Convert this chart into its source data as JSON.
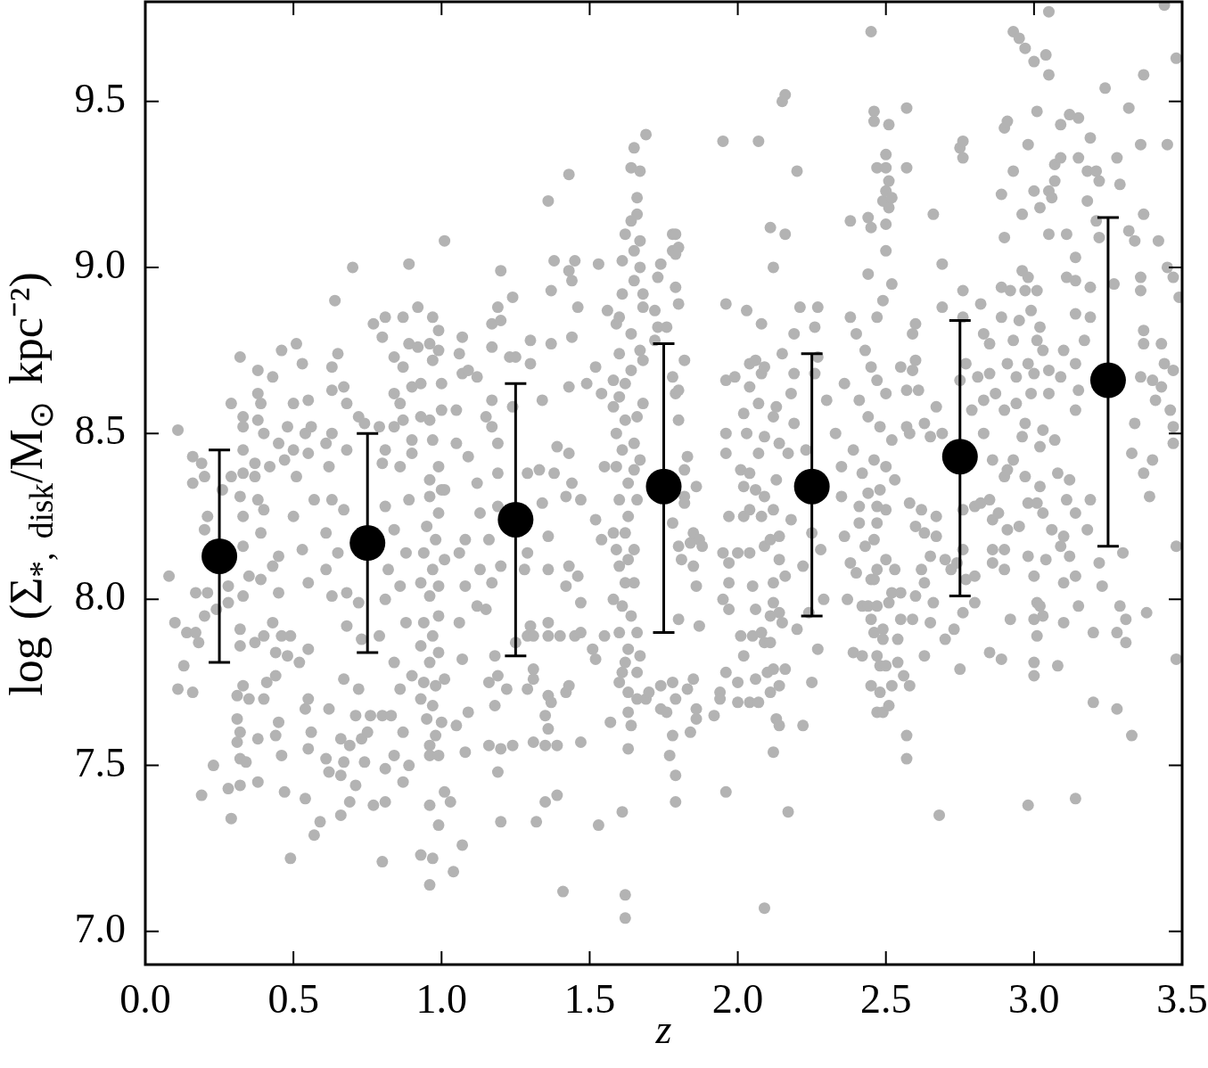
{
  "chart_data": {
    "type": "scatter",
    "xlabel": "z",
    "ylabel": "log (Σ$_{*, disk}$/M$_{⊙}$ kpc⁻²)",
    "xlim": [
      0,
      3.5
    ],
    "ylim": [
      6.9,
      9.8
    ],
    "xticks": [
      {
        "value": 0,
        "label": "0.0"
      },
      0.5,
      {
        "value": 1,
        "label": "1.0"
      },
      1.5,
      {
        "value": 2,
        "label": "2.0"
      },
      2.5,
      {
        "value": 3,
        "label": "3.0"
      },
      3.5
    ],
    "yticks": [
      {
        "value": 7,
        "label": "7.0"
      },
      7.5,
      {
        "value": 8,
        "label": "8.0"
      },
      8.5,
      {
        "value": 9,
        "label": "9.0"
      },
      9.5
    ],
    "marker": "circle",
    "series": [
      {
        "color": "#b3b3b3",
        "x": [
          0.08,
          0.11,
          0.1,
          0.13,
          0.11,
          0.16,
          0.14,
          0.16,
          0.16,
          0.17,
          0.17,
          0.18,
          0.19,
          0.19,
          0.2,
          0.21,
          0.2,
          0.21,
          0.2,
          0.23,
          0.24,
          0.26,
          0.28,
          0.28,
          0.29,
          0.28,
          0.29,
          0.29,
          0.32,
          0.32,
          0.32,
          0.33,
          0.33,
          0.33,
          0.33,
          0.33,
          0.33,
          0.33,
          0.32,
          0.32,
          0.33,
          0.31,
          0.31,
          0.32,
          0.31,
          0.32,
          0.34,
          0.35,
          0.35,
          0.37,
          0.37,
          0.37,
          0.38,
          0.38,
          0.38,
          0.38,
          0.38,
          0.38,
          0.39,
          0.39,
          0.39,
          0.4,
          0.4,
          0.4,
          0.4,
          0.41,
          0.42,
          0.43,
          0.43,
          0.43,
          0.44,
          0.44,
          0.44,
          0.45,
          0.45,
          0.45,
          0.45,
          0.46,
          0.46,
          0.46,
          0.47,
          0.47,
          0.48,
          0.48,
          0.49,
          0.49,
          0.5,
          0.5,
          0.5,
          0.51,
          0.51,
          0.52,
          0.53,
          0.53,
          0.54,
          0.54,
          0.54,
          0.55,
          0.55,
          0.55,
          0.55,
          0.55,
          0.55,
          0.56,
          0.56,
          0.57,
          0.57,
          0.59,
          0.61,
          0.61,
          0.61,
          0.61,
          0.62,
          0.62,
          0.62,
          0.63,
          0.63,
          0.63,
          0.63,
          0.63,
          0.64,
          0.65,
          0.65,
          0.66,
          0.66,
          0.66,
          0.67,
          0.67,
          0.67,
          0.67,
          0.68,
          0.68,
          0.68,
          0.68,
          0.69,
          0.69,
          0.7,
          0.71,
          0.71,
          0.72,
          0.72,
          0.72,
          0.73,
          0.73,
          0.74,
          0.74,
          0.75,
          0.76,
          0.77,
          0.77,
          0.79,
          0.79,
          0.8,
          0.8,
          0.8,
          0.8,
          0.81,
          0.81,
          0.81,
          0.81,
          0.81,
          0.81,
          0.82,
          0.83,
          0.84,
          0.84,
          0.84,
          0.84,
          0.84,
          0.84,
          0.86,
          0.86,
          0.86,
          0.86,
          0.87,
          0.87,
          0.87,
          0.87,
          0.87,
          0.88,
          0.88,
          0.89,
          0.89,
          0.89,
          0.89,
          0.9,
          0.9,
          0.9,
          0.9,
          0.92,
          0.92,
          0.93,
          0.93,
          0.93,
          0.93,
          0.93,
          0.93,
          0.94,
          0.94,
          0.94,
          0.95,
          0.95,
          0.96,
          0.96,
          0.96,
          0.96,
          0.96,
          0.96,
          0.96,
          0.96,
          0.96,
          0.96,
          0.97,
          0.97,
          0.97,
          0.97,
          0.97,
          0.97,
          0.97,
          0.98,
          0.98,
          0.98,
          0.99,
          0.99,
          0.99,
          0.99,
          0.99,
          0.99,
          0.99,
          0.99,
          0.99,
          1.0,
          1.0,
          1.0,
          1.0,
          1.01,
          1.01,
          1.01,
          1.01,
          1.01,
          1.03,
          1.04,
          1.05,
          1.05,
          1.05,
          1.06,
          1.06,
          1.06,
          1.07,
          1.07,
          1.07,
          1.07,
          1.08,
          1.08,
          1.08,
          1.09,
          1.09,
          1.09,
          1.12,
          1.12,
          1.12,
          1.13,
          1.13,
          1.15,
          1.15,
          1.16,
          1.16,
          1.16,
          1.17,
          1.17,
          1.17,
          1.17,
          1.17,
          1.18,
          1.18,
          1.19,
          1.19,
          1.19,
          1.19,
          1.19,
          1.19,
          1.2,
          1.2,
          1.2,
          1.2,
          1.2,
          1.22,
          1.23,
          1.24,
          1.24,
          1.24,
          1.25,
          1.25,
          1.28,
          1.29,
          1.29,
          1.29,
          1.29,
          1.3,
          1.3,
          1.3,
          1.31,
          1.31,
          1.31,
          1.31,
          1.32,
          1.33,
          1.34,
          1.34,
          1.35,
          1.35,
          1.35,
          1.36,
          1.36,
          1.36,
          1.36,
          1.36,
          1.36,
          1.36,
          1.37,
          1.37,
          1.37,
          1.38,
          1.38,
          1.39,
          1.39,
          1.39,
          1.4,
          1.41,
          1.42,
          1.42,
          1.42,
          1.43,
          1.43,
          1.43,
          1.43,
          1.43,
          1.43,
          1.44,
          1.44,
          1.44,
          1.45,
          1.45,
          1.46,
          1.46,
          1.47,
          1.47,
          1.47,
          1.47,
          1.49,
          1.51,
          1.52,
          1.52,
          1.52,
          1.53,
          1.53,
          1.54,
          1.54,
          1.55,
          1.55,
          1.56,
          1.57,
          1.58,
          1.58,
          1.58,
          1.59,
          1.59,
          1.6,
          1.6,
          1.6,
          1.6,
          1.6,
          1.6,
          1.61,
          1.61,
          1.61,
          1.61,
          1.62,
          1.62,
          1.62,
          1.62,
          1.62,
          1.62,
          1.63,
          1.63,
          1.63,
          1.63,
          1.63,
          1.64,
          1.64,
          1.64,
          1.64,
          1.64,
          1.65,
          1.65,
          1.65,
          1.65,
          1.65,
          1.65,
          1.66,
          1.66,
          1.66,
          1.66,
          1.67,
          1.67,
          1.67,
          1.67,
          1.67,
          1.68,
          1.68,
          1.68,
          1.68,
          1.69,
          1.69,
          1.7,
          1.72,
          1.72,
          1.73,
          1.73,
          1.74,
          1.74,
          1.74,
          1.59,
          1.61,
          1.63,
          1.66,
          1.62,
          1.64,
          1.6,
          1.66,
          1.62,
          1.59,
          1.65,
          1.61,
          1.66,
          1.63,
          1.67,
          1.58,
          1.76,
          1.76,
          1.77,
          1.78,
          1.78,
          1.78,
          1.78,
          1.78,
          1.78,
          1.79,
          1.79,
          1.79,
          1.79,
          1.79,
          1.79,
          1.79,
          1.8,
          1.8,
          1.8,
          1.8,
          1.8,
          1.8,
          1.81,
          1.82,
          1.82,
          1.82,
          1.82,
          1.83,
          1.83,
          1.84,
          1.84,
          1.85,
          1.85,
          1.85,
          1.86,
          1.86,
          1.86,
          1.86,
          1.87,
          1.87,
          1.88,
          1.92,
          1.94,
          1.94,
          1.95,
          1.95,
          1.95,
          1.96,
          1.96,
          1.96,
          1.96,
          1.96,
          1.96,
          1.97,
          1.97,
          1.97,
          1.97,
          1.99,
          2.0,
          2.0,
          2.0,
          2.01,
          2.01,
          2.02,
          2.02,
          2.02,
          2.02,
          2.03,
          2.03,
          2.04,
          2.04,
          2.04,
          2.04,
          2.04,
          2.04,
          2.05,
          2.05,
          2.06,
          2.06,
          2.06,
          2.06,
          2.07,
          2.07,
          2.07,
          2.07,
          2.08,
          2.08,
          2.08,
          2.08,
          2.09,
          2.09,
          2.09,
          2.09,
          2.09,
          2.09,
          2.1,
          2.11,
          2.11,
          2.11,
          2.11,
          2.11,
          2.12,
          2.12,
          2.12,
          2.12,
          2.12,
          2.12,
          2.12,
          2.13,
          2.13,
          2.13,
          2.14,
          2.14,
          2.14,
          2.14,
          2.14,
          2.14,
          2.15,
          2.15,
          2.15,
          2.16,
          2.16,
          2.16,
          2.16,
          2.17,
          2.17,
          2.18,
          2.18,
          2.19,
          2.19,
          2.19,
          2.2,
          2.2,
          2.21,
          2.24,
          2.25,
          2.26,
          2.26,
          2.27,
          2.27,
          2.22,
          2.25,
          2.23,
          2.29,
          2.3,
          2.27,
          2.22,
          2.28,
          2.35,
          2.36,
          2.37,
          2.38,
          2.38,
          2.39,
          2.4,
          2.41,
          2.41,
          2.42,
          2.42,
          2.43,
          2.44,
          2.44,
          2.44,
          2.45,
          2.45,
          2.45,
          2.45,
          2.46,
          2.46,
          2.46,
          2.46,
          2.46,
          2.45,
          2.47,
          2.47,
          2.47,
          2.47,
          2.47,
          2.47,
          2.47,
          2.48,
          2.48,
          2.48,
          2.49,
          2.49,
          2.49,
          2.49,
          2.5,
          2.5,
          2.5,
          2.5,
          2.5,
          2.5,
          2.5,
          2.51,
          2.51,
          2.51,
          2.51,
          2.51,
          2.52,
          2.52,
          2.52,
          2.53,
          2.54,
          2.54,
          2.55,
          2.55,
          2.56,
          2.57,
          2.57,
          2.57,
          2.57,
          2.57,
          2.57,
          2.58,
          2.58,
          2.58,
          2.38,
          2.4,
          2.43,
          2.45,
          2.47,
          2.5,
          2.41,
          2.44,
          2.48,
          2.52,
          2.39,
          2.46,
          2.5,
          2.42,
          2.53,
          2.49,
          2.52,
          2.36,
          2.33,
          2.55,
          2.35,
          2.47,
          2.44,
          2.5,
          2.59,
          2.59,
          2.59,
          2.6,
          2.6,
          2.6,
          2.6,
          2.61,
          2.62,
          2.62,
          2.63,
          2.63,
          2.63,
          2.63,
          2.65,
          2.65,
          2.65,
          2.66,
          2.66,
          2.67,
          2.67,
          2.67,
          2.68,
          2.69,
          2.69,
          2.69,
          2.7,
          2.7,
          2.72,
          2.73,
          2.74,
          2.75,
          2.75,
          2.75,
          2.76,
          2.76,
          2.76,
          2.76,
          2.76,
          2.76,
          2.76,
          2.77,
          2.77,
          2.79,
          2.8,
          2.8,
          2.8,
          2.81,
          2.82,
          2.82,
          2.83,
          2.83,
          2.83,
          2.85,
          2.85,
          2.85,
          2.85,
          2.86,
          2.86,
          2.86,
          2.86,
          2.87,
          2.88,
          2.89,
          2.89,
          2.89,
          2.89,
          2.9,
          2.9,
          2.9,
          2.9,
          2.9,
          2.9,
          2.91,
          2.91,
          2.91,
          2.91,
          2.92,
          2.92,
          2.93,
          2.93,
          2.93,
          2.93,
          2.94,
          2.94,
          2.95,
          2.95,
          2.95,
          2.96,
          2.96,
          2.96,
          2.97,
          2.97,
          2.97,
          2.97,
          2.98,
          2.98,
          2.98,
          2.98,
          2.98,
          2.98,
          2.99,
          2.99,
          3.0,
          3.0,
          3.0,
          3.0,
          3.0,
          3.0,
          3.0,
          3.01,
          3.01,
          3.01,
          3.01,
          3.01,
          3.01,
          3.02,
          3.02,
          3.02,
          3.02,
          3.02,
          3.03,
          3.03,
          3.03,
          3.03,
          3.04,
          3.04,
          3.05,
          3.05,
          3.05,
          3.05,
          3.05,
          3.05,
          3.06,
          3.06,
          3.07,
          3.07,
          3.07,
          3.08,
          3.08,
          3.09,
          3.09,
          3.09,
          3.09,
          3.1,
          3.1,
          3.1,
          3.1,
          3.11,
          3.11,
          3.11,
          3.12,
          3.12,
          3.12,
          3.14,
          3.14,
          3.14,
          3.14,
          3.14,
          3.14,
          3.14,
          3.14,
          3.15,
          3.15,
          3.15,
          3.15,
          3.17,
          3.18,
          3.18,
          3.18,
          3.19,
          3.19,
          3.19,
          3.19,
          3.2,
          3.2,
          3.21,
          3.21,
          3.22,
          3.22,
          3.22,
          3.23,
          3.24,
          3.27,
          3.28,
          3.28,
          3.28,
          3.29,
          3.29,
          3.3,
          3.31,
          3.31,
          3.32,
          3.32,
          3.33,
          3.33,
          3.34,
          3.34,
          3.36,
          3.36,
          3.36,
          3.36,
          3.37,
          3.37,
          3.37,
          3.37,
          3.37,
          3.38,
          3.39,
          3.4,
          3.4,
          3.41,
          3.42,
          3.43,
          3.43,
          3.44,
          3.44,
          3.45,
          3.45,
          3.46,
          3.47,
          3.47,
          3.47,
          3.47,
          3.48,
          3.48,
          3.48,
          3.49
        ],
        "values": [
          8.07,
          8.51,
          7.93,
          7.8,
          7.73,
          7.72,
          7.9,
          8.43,
          8.35,
          8.02,
          7.9,
          7.87,
          7.41,
          8.41,
          8.37,
          8.25,
          8.21,
          8.02,
          7.95,
          7.5,
          7.97,
          8.33,
          7.99,
          8.04,
          7.34,
          7.43,
          8.59,
          8.37,
          8.73,
          8.31,
          7.44,
          8.38,
          8.45,
          8.55,
          8.52,
          8.25,
          8.16,
          8.01,
          7.91,
          7.86,
          7.74,
          7.71,
          7.64,
          7.6,
          7.57,
          7.52,
          7.51,
          8.07,
          7.7,
          8.37,
          8.41,
          7.87,
          8.69,
          8.3,
          8.54,
          8.62,
          7.45,
          7.58,
          8.59,
          8.2,
          8.06,
          8.5,
          8.27,
          7.89,
          7.7,
          7.75,
          8.4,
          8.67,
          8.1,
          7.93,
          7.84,
          7.77,
          7.59,
          8.13,
          8.02,
          8.47,
          7.63,
          8.75,
          7.89,
          7.53,
          8.42,
          7.42,
          8.52,
          7.83,
          7.22,
          7.89,
          8.59,
          8.45,
          8.25,
          8.77,
          8.37,
          7.81,
          8.71,
          8.15,
          8.5,
          7.4,
          7.67,
          8.6,
          8.44,
          8.05,
          7.85,
          7.7,
          7.55,
          8.52,
          7.6,
          8.3,
          7.29,
          7.33,
          8.47,
          8.2,
          8.09,
          7.52,
          8.4,
          7.67,
          7.48,
          8.7,
          8.63,
          8.5,
          8.3,
          8.01,
          8.9,
          8.74,
          8.14,
          7.35,
          7.58,
          7.47,
          8.64,
          8.27,
          7.76,
          7.51,
          8.45,
          8.59,
          8.02,
          7.92,
          7.39,
          7.56,
          9.0,
          7.65,
          7.44,
          8.55,
          7.99,
          7.73,
          7.88,
          7.58,
          8.53,
          7.51,
          7.6,
          7.65,
          8.83,
          7.38,
          8.52,
          7.89,
          8.79,
          8.41,
          7.65,
          7.21,
          8.85,
          8.45,
          8.28,
          8.0,
          7.39,
          7.49,
          8.09,
          7.65,
          8.52,
          8.62,
          8.73,
          8.21,
          7.81,
          7.53,
          8.4,
          8.59,
          8.04,
          7.73,
          8.85,
          8.54,
          8.7,
          7.6,
          7.45,
          8.14,
          7.93,
          9.01,
          8.77,
          8.3,
          7.5,
          8.64,
          8.44,
          8.48,
          7.77,
          8.88,
          8.76,
          8.55,
          8.65,
          8.05,
          7.86,
          7.7,
          7.23,
          8.14,
          7.93,
          7.75,
          8.22,
          7.64,
          8.77,
          8.54,
          8.36,
          8.31,
          8.01,
          7.81,
          7.56,
          7.53,
          7.38,
          7.14,
          8.85,
          8.72,
          8.48,
          8.09,
          7.89,
          7.68,
          7.22,
          8.18,
          7.74,
          7.59,
          8.81,
          8.75,
          8.4,
          8.26,
          8.04,
          7.95,
          7.84,
          7.53,
          7.32,
          8.65,
          8.57,
          8.33,
          7.63,
          9.08,
          8.33,
          8.12,
          7.76,
          7.42,
          7.39,
          7.18,
          8.57,
          8.47,
          7.62,
          8.74,
          8.14,
          7.93,
          8.79,
          8.68,
          7.82,
          7.26,
          8.18,
          8.04,
          7.54,
          8.69,
          8.43,
          7.66,
          8.67,
          8.35,
          7.98,
          8.26,
          8.09,
          8.55,
          7.97,
          8.18,
          7.75,
          7.56,
          8.83,
          8.76,
          8.6,
          8.52,
          8.05,
          7.83,
          7.68,
          8.88,
          8.47,
          8.38,
          8.28,
          7.77,
          7.48,
          8.99,
          8.84,
          8.1,
          7.55,
          7.33,
          7.73,
          8.73,
          8.91,
          8.58,
          7.56,
          8.73,
          7.87,
          8.09,
          8.38,
          8.14,
          7.89,
          7.73,
          8.78,
          8.71,
          7.92,
          7.89,
          7.79,
          7.76,
          7.57,
          7.33,
          8.39,
          8.6,
          8.29,
          7.65,
          7.56,
          7.39,
          9.2,
          8.19,
          8.09,
          7.93,
          7.89,
          7.71,
          7.61,
          8.93,
          8.77,
          7.69,
          9.02,
          8.38,
          8.46,
          7.56,
          7.41,
          7.89,
          7.12,
          8.31,
          8.04,
          7.72,
          9.28,
          8.99,
          8.64,
          8.44,
          8.1,
          7.74,
          8.96,
          8.79,
          8.35,
          9.02,
          7.89,
          8.88,
          8.07,
          8.3,
          7.99,
          7.9,
          7.57,
          8.65,
          7.85,
          8.7,
          8.24,
          7.82,
          9.01,
          7.32,
          8.62,
          8.18,
          8.4,
          7.89,
          8.87,
          7.63,
          8.66,
          8.2,
          8.0,
          8.83,
          8.5,
          8.74,
          8.61,
          8.3,
          8.1,
          7.9,
          7.75,
          9.02,
          8.92,
          7.78,
          7.36,
          9.1,
          8.54,
          8.05,
          7.81,
          7.11,
          7.04,
          8.25,
          7.85,
          7.72,
          7.66,
          7.55,
          9.3,
          9.14,
          8.69,
          7.95,
          7.62,
          9.36,
          9.05,
          8.96,
          8.47,
          8.39,
          8.15,
          9.21,
          9.16,
          7.78,
          7.7,
          9.29,
          9.08,
          9.0,
          8.75,
          7.83,
          8.92,
          8.88,
          8.72,
          8.59,
          9.4,
          7.7,
          7.72,
          8.87,
          8.78,
          8.97,
          8.82,
          9.01,
          7.67,
          7.74,
          8.4,
          8.45,
          8.35,
          8.55,
          8.65,
          8.8,
          8.85,
          8.3,
          8.2,
          8.15,
          8.05,
          7.98,
          7.9,
          8.12,
          8.42,
          8.58,
          8.82,
          7.66,
          7.53,
          9.1,
          9.05,
          8.67,
          8.23,
          7.75,
          7.59,
          9.1,
          9.04,
          8.94,
          8.62,
          7.7,
          7.47,
          7.39,
          9.06,
          8.89,
          8.63,
          8.54,
          8.16,
          7.94,
          8.12,
          8.72,
          8.39,
          8.31,
          8.29,
          8.43,
          7.73,
          8.17,
          7.6,
          8.2,
          8.1,
          7.76,
          8.34,
          8.04,
          7.67,
          7.64,
          8.18,
          7.92,
          8.16,
          7.65,
          7.72,
          7.7,
          9.38,
          8.14,
          8.0,
          8.89,
          8.66,
          8.5,
          8.44,
          7.78,
          7.42,
          8.25,
          8.11,
          8.05,
          7.97,
          8.67,
          8.14,
          7.75,
          7.69,
          8.39,
          7.89,
          8.56,
          8.34,
          8.25,
          7.83,
          8.87,
          8.5,
          8.71,
          8.64,
          8.38,
          8.27,
          8.14,
          7.69,
          8.04,
          7.89,
          8.72,
          8.33,
          7.97,
          7.76,
          9.38,
          8.59,
          8.44,
          7.69,
          8.83,
          8.68,
          8.25,
          7.9,
          8.7,
          8.49,
          8.31,
          8.16,
          7.87,
          7.07,
          7.78,
          9.12,
          8.18,
          7.95,
          7.87,
          7.72,
          9.0,
          8.55,
          8.27,
          8.05,
          7.99,
          7.79,
          7.54,
          8.58,
          8.36,
          7.64,
          8.47,
          8.19,
          8.12,
          7.96,
          7.74,
          7.62,
          9.5,
          8.74,
          7.93,
          9.52,
          9.1,
          8.07,
          7.79,
          8.44,
          7.36,
          8.62,
          8.24,
          8.8,
          8.68,
          8.53,
          9.29,
          7.91,
          8.88,
          7.96,
          7.75,
          8.82,
          8.68,
          8.88,
          8.73,
          8.1,
          8.2,
          8.45,
          8.0,
          8.6,
          7.85,
          7.62,
          8.15,
          8.31,
          8.19,
          8.0,
          8.11,
          9.14,
          7.84,
          8.08,
          8.23,
          8.28,
          7.98,
          7.83,
          8.16,
          9.15,
          8.32,
          7.98,
          9.12,
          8.06,
          7.74,
          7.94,
          9.47,
          9.44,
          8.18,
          8.06,
          7.9,
          9.71,
          9.3,
          8.23,
          7.98,
          8.09,
          7.83,
          7.66,
          8.28,
          8.33,
          7.8,
          7.72,
          9.2,
          7.91,
          7.66,
          7.88,
          9.34,
          9.3,
          9.23,
          9.13,
          8.12,
          7.8,
          8.27,
          9.43,
          9.26,
          9.18,
          7.68,
          7.99,
          9.21,
          8.02,
          7.74,
          8.09,
          7.88,
          7.81,
          7.94,
          8.02,
          7.77,
          9.48,
          9.3,
          8.52,
          8.63,
          7.59,
          7.52,
          8.5,
          8.29,
          7.74,
          8.85,
          8.8,
          8.75,
          8.7,
          8.66,
          8.62,
          8.6,
          8.55,
          8.52,
          8.48,
          8.45,
          8.42,
          8.4,
          8.38,
          8.36,
          8.9,
          8.95,
          8.65,
          8.5,
          8.7,
          8.4,
          8.85,
          8.98,
          9.05,
          8.8,
          8.69,
          7.94,
          8.83,
          8.72,
          8.22,
          8.01,
          8.63,
          8.27,
          8.09,
          8.53,
          8.2,
          8.05,
          7.83,
          8.49,
          8.13,
          7.93,
          9.16,
          7.99,
          8.58,
          8.25,
          8.19,
          7.35,
          9.01,
          8.88,
          8.5,
          8.12,
          7.88,
          8.09,
          7.91,
          8.11,
          9.36,
          8.66,
          7.79,
          9.38,
          9.33,
          8.93,
          8.85,
          8.27,
          8.15,
          7.96,
          8.71,
          8.06,
          8.57,
          8.28,
          8.07,
          7.99,
          8.67,
          8.89,
          8.29,
          8.8,
          8.6,
          8.5,
          8.77,
          8.68,
          8.3,
          7.84,
          8.42,
          8.24,
          8.15,
          8.11,
          8.62,
          8.26,
          9.22,
          8.94,
          8.85,
          7.82,
          9.42,
          9.09,
          8.57,
          8.37,
          8.15,
          8.09,
          9.44,
          8.71,
          8.39,
          8.21,
          8.93,
          7.94,
          9.71,
          9.29,
          8.78,
          8.42,
          8.67,
          8.59,
          9.69,
          8.84,
          8.22,
          9.16,
          8.99,
          8.49,
          9.66,
          8.93,
          8.53,
          8.37,
          9.37,
          8.97,
          8.71,
          8.29,
          8.13,
          7.38,
          8.87,
          8.62,
          9.62,
          9.23,
          8.68,
          8.07,
          7.94,
          7.81,
          7.77,
          9.47,
          8.93,
          8.78,
          8.29,
          7.99,
          7.89,
          9.18,
          8.82,
          8.46,
          8.34,
          7.98,
          8.75,
          8.51,
          8.26,
          7.95,
          9.64,
          8.12,
          9.77,
          9.58,
          9.23,
          9.1,
          8.69,
          8.62,
          9.21,
          8.21,
          9.31,
          9.26,
          8.48,
          8.38,
          7.8,
          9.43,
          9.33,
          8.67,
          8.16,
          8.75,
          8.19,
          8.05,
          7.93,
          9.1,
          8.97,
          8.3,
          9.46,
          8.36,
          8.13,
          9.03,
          8.96,
          8.86,
          8.71,
          8.57,
          8.26,
          8.07,
          7.4,
          9.33,
          9.45,
          8.63,
          7.98,
          8.78,
          9.29,
          9.2,
          8.21,
          9.39,
          8.94,
          8.85,
          8.3,
          7.9,
          7.69,
          9.29,
          9.14,
          9.26,
          9.09,
          8.11,
          8.04,
          9.54,
          8.95,
          9.33,
          7.9,
          7.67,
          9.25,
          7.98,
          8.14,
          7.94,
          7.87,
          9.48,
          9.11,
          8.44,
          7.59,
          9.08,
          8.53,
          9.37,
          8.97,
          8.93,
          8.67,
          9.58,
          9.16,
          8.81,
          8.77,
          8.38,
          7.96,
          8.31,
          8.66,
          8.42,
          8.6,
          9.08,
          8.77,
          8.64,
          9.79,
          8.71,
          9.37,
          9.0,
          8.57,
          8.97,
          8.69,
          8.52,
          8.47,
          9.63,
          8.16,
          7.82,
          8.91
        ]
      },
      {
        "color": "#000000",
        "x": [
          0.25,
          0.75,
          1.25,
          1.75,
          2.25,
          2.75,
          3.25
        ],
        "values": [
          8.13,
          8.17,
          8.24,
          8.34,
          8.34,
          8.43,
          8.66
        ],
        "errors": [
          [
            7.81,
            8.45
          ],
          [
            7.84,
            8.5
          ],
          [
            7.83,
            8.65
          ],
          [
            7.9,
            8.77
          ],
          [
            7.95,
            8.74
          ],
          [
            8.01,
            8.84
          ],
          [
            8.16,
            9.15
          ]
        ]
      }
    ]
  }
}
